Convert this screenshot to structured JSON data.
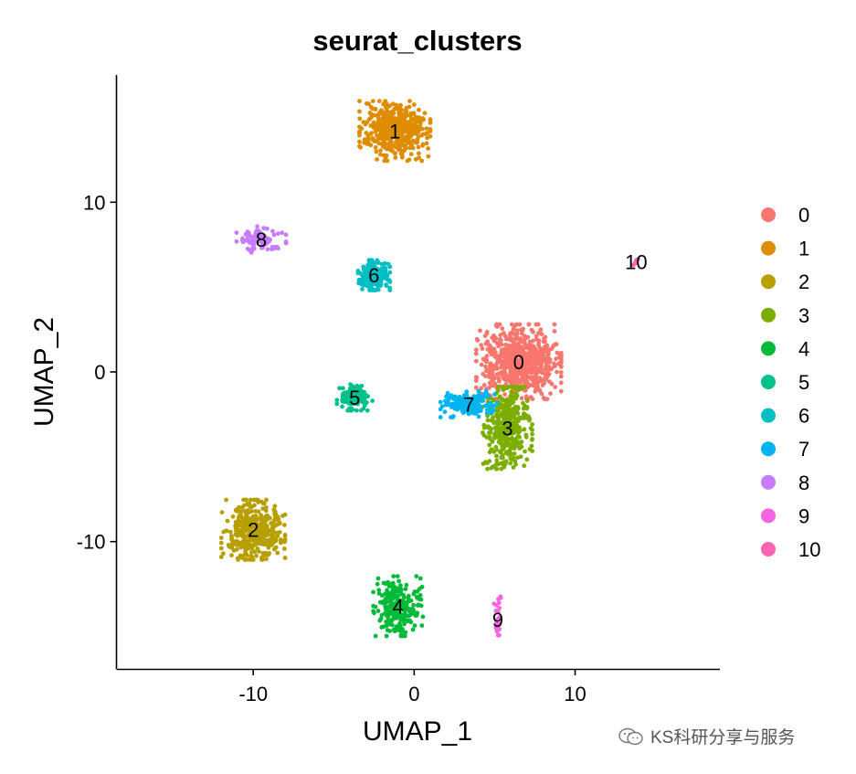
{
  "chart_data": {
    "type": "scatter",
    "title": "seurat_clusters",
    "xlabel": "UMAP_1",
    "ylabel": "UMAP_2",
    "xlim": [
      -18.5,
      19
    ],
    "ylim": [
      -17.5,
      17.5
    ],
    "xticks": [
      -10,
      0,
      10
    ],
    "yticks": [
      -10,
      0,
      10
    ],
    "tick_labels_x": [
      "-10",
      "0",
      "10"
    ],
    "tick_labels_y": [
      "-10",
      "0",
      "10"
    ],
    "grid": false,
    "legend_position": "right",
    "legend": [
      "0",
      "1",
      "2",
      "3",
      "4",
      "5",
      "6",
      "7",
      "8",
      "9",
      "10"
    ],
    "colors": [
      "#F8766D",
      "#DE8C00",
      "#B79F00",
      "#7CAE00",
      "#00BA38",
      "#00C08B",
      "#00BFC4",
      "#00B4F0",
      "#C77CFF",
      "#F564E3",
      "#FF64B0"
    ],
    "clusters": [
      {
        "id": "0",
        "label": "0",
        "center": [
          6.5,
          0.6
        ],
        "spread": [
          1.2,
          1.0
        ],
        "n": 700
      },
      {
        "id": "1",
        "label": "1",
        "center": [
          -1.2,
          14.2
        ],
        "spread": [
          1.0,
          0.8
        ],
        "n": 450
      },
      {
        "id": "2",
        "label": "2",
        "center": [
          -10.0,
          -9.3
        ],
        "spread": [
          0.9,
          0.8
        ],
        "n": 420
      },
      {
        "id": "3",
        "label": "3",
        "center": [
          5.8,
          -3.3
        ],
        "spread": [
          0.7,
          1.1
        ],
        "n": 380
      },
      {
        "id": "4",
        "label": "4",
        "center": [
          -1.0,
          -13.8
        ],
        "spread": [
          0.7,
          0.8
        ],
        "n": 230
      },
      {
        "id": "5",
        "label": "5",
        "center": [
          -3.7,
          -1.5
        ],
        "spread": [
          0.5,
          0.35
        ],
        "n": 130
      },
      {
        "id": "6",
        "label": "6",
        "center": [
          -2.5,
          5.7
        ],
        "spread": [
          0.45,
          0.4
        ],
        "n": 220
      },
      {
        "id": "7",
        "label": "7",
        "center": [
          3.4,
          -1.9
        ],
        "spread": [
          0.8,
          0.35
        ],
        "n": 160
      },
      {
        "id": "8",
        "label": "8",
        "center": [
          -9.5,
          7.8
        ],
        "spread": [
          0.7,
          0.35
        ],
        "n": 90
      },
      {
        "id": "9",
        "label": "9",
        "center": [
          5.2,
          -14.6
        ],
        "spread": [
          0.12,
          0.7
        ],
        "n": 22
      },
      {
        "id": "10",
        "label": "10",
        "center": [
          13.8,
          6.5
        ],
        "spread": [
          0.12,
          0.1
        ],
        "n": 6
      }
    ]
  },
  "watermark": {
    "text": "KS科研分享与服务"
  }
}
